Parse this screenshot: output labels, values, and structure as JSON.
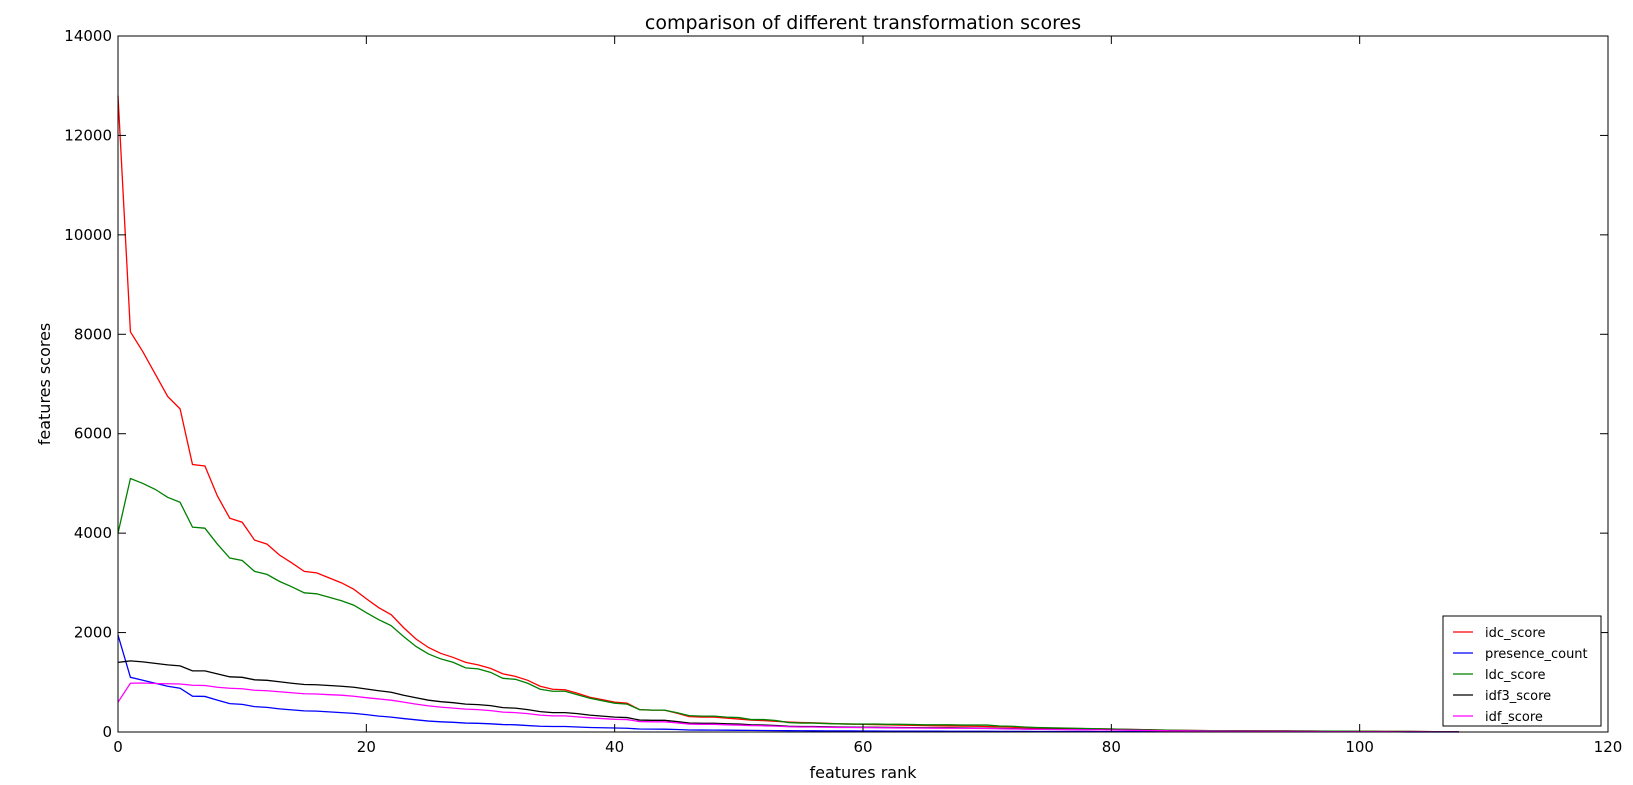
{
  "chart_data": {
    "type": "line",
    "title": "comparison of different transformation scores",
    "xlabel": "features rank",
    "ylabel": "features scores",
    "xlim": [
      0,
      120
    ],
    "ylim": [
      0,
      14000
    ],
    "xticks": [
      0,
      20,
      40,
      60,
      80,
      100,
      120
    ],
    "yticks": [
      0,
      2000,
      4000,
      6000,
      8000,
      10000,
      12000,
      14000
    ],
    "grid": false,
    "legend_position": "bottom-right",
    "x": [
      0,
      1,
      2,
      3,
      4,
      5,
      6,
      7,
      8,
      9,
      10,
      11,
      12,
      13,
      14,
      15,
      16,
      17,
      18,
      19,
      20,
      21,
      22,
      23,
      24,
      25,
      26,
      27,
      28,
      29,
      30,
      31,
      32,
      33,
      34,
      35,
      36,
      37,
      38,
      39,
      40,
      41,
      42,
      43,
      44,
      45,
      46,
      47,
      48,
      49,
      50,
      51,
      52,
      53,
      54,
      55,
      56,
      57,
      58,
      59,
      60,
      61,
      62,
      63,
      64,
      65,
      66,
      67,
      68,
      69,
      70,
      71,
      72,
      73,
      74,
      75,
      76,
      77,
      78,
      79,
      80,
      81,
      82,
      83,
      84,
      85,
      86,
      87,
      88,
      89,
      90,
      91,
      92,
      93,
      94,
      95,
      96,
      97,
      98,
      99,
      100,
      101,
      102,
      103,
      104,
      105,
      106,
      107,
      108
    ],
    "series": [
      {
        "name": "idc_score",
        "color": "#ff0000",
        "values": [
          12800,
          8050,
          7650,
          7200,
          6750,
          6500,
          5380,
          5350,
          4750,
          4300,
          4220,
          3860,
          3780,
          3560,
          3400,
          3230,
          3200,
          3100,
          3000,
          2870,
          2680,
          2500,
          2360,
          2100,
          1870,
          1700,
          1580,
          1500,
          1400,
          1350,
          1280,
          1170,
          1120,
          1040,
          920,
          860,
          850,
          780,
          700,
          650,
          600,
          580,
          450,
          440,
          440,
          380,
          310,
          300,
          300,
          280,
          260,
          240,
          230,
          215,
          200,
          190,
          185,
          175,
          165,
          160,
          155,
          150,
          145,
          140,
          135,
          130,
          125,
          120,
          118,
          115,
          110,
          105,
          95,
          85,
          80,
          75,
          72,
          70,
          68,
          65,
          60,
          55,
          50,
          45,
          40,
          35,
          32,
          30,
          28,
          26,
          25,
          24,
          23,
          22,
          21,
          20,
          19,
          18,
          17,
          16,
          15,
          14,
          13,
          12,
          11,
          10,
          8,
          6,
          5
        ]
      },
      {
        "name": "presence_count",
        "color": "#0000ff",
        "values": [
          1950,
          1100,
          1040,
          980,
          920,
          880,
          720,
          715,
          640,
          570,
          555,
          510,
          495,
          465,
          445,
          425,
          420,
          405,
          390,
          375,
          350,
          320,
          300,
          270,
          245,
          220,
          205,
          195,
          180,
          175,
          165,
          150,
          145,
          130,
          115,
          110,
          110,
          100,
          90,
          85,
          80,
          75,
          60,
          58,
          57,
          50,
          40,
          39,
          38,
          36,
          34,
          32,
          30,
          28,
          26,
          25,
          24,
          23,
          22,
          21,
          20,
          19,
          18,
          18,
          17,
          16,
          16,
          15,
          15,
          14,
          14,
          13,
          12,
          11,
          10,
          10,
          9,
          9,
          9,
          8,
          8,
          7,
          7,
          6,
          6,
          5,
          5,
          4,
          4,
          4,
          3,
          3,
          3,
          3,
          3,
          3,
          2,
          2,
          2,
          2,
          2,
          2,
          2,
          2,
          1,
          1,
          1,
          1,
          1
        ]
      },
      {
        "name": "ldc_score",
        "color": "#008000",
        "values": [
          4000,
          5100,
          5000,
          4880,
          4720,
          4620,
          4120,
          4100,
          3780,
          3500,
          3450,
          3230,
          3170,
          3030,
          2920,
          2800,
          2780,
          2710,
          2640,
          2550,
          2400,
          2260,
          2140,
          1920,
          1720,
          1570,
          1470,
          1400,
          1290,
          1270,
          1200,
          1080,
          1060,
          980,
          860,
          820,
          820,
          750,
          680,
          630,
          580,
          560,
          450,
          440,
          440,
          390,
          330,
          320,
          320,
          300,
          290,
          250,
          250,
          230,
          190,
          180,
          180,
          170,
          165,
          160,
          160,
          160,
          155,
          155,
          150,
          145,
          145,
          145,
          140,
          140,
          140,
          120,
          115,
          100,
          90,
          85,
          80,
          75,
          70,
          65,
          60,
          55,
          50,
          45,
          40,
          35,
          32,
          30,
          28,
          26,
          25,
          24,
          23,
          22,
          21,
          20,
          19,
          18,
          17,
          16,
          15,
          14,
          13,
          12,
          11,
          10,
          8,
          6,
          5
        ]
      },
      {
        "name": "idf3_score",
        "color": "#000000",
        "values": [
          1400,
          1430,
          1410,
          1380,
          1350,
          1330,
          1230,
          1230,
          1170,
          1110,
          1100,
          1050,
          1040,
          1010,
          980,
          955,
          950,
          935,
          920,
          900,
          865,
          830,
          800,
          740,
          690,
          640,
          610,
          590,
          560,
          550,
          530,
          490,
          480,
          450,
          410,
          390,
          390,
          370,
          340,
          320,
          300,
          290,
          240,
          235,
          235,
          210,
          180,
          175,
          175,
          165,
          160,
          145,
          140,
          130,
          115,
          110,
          110,
          105,
          100,
          98,
          96,
          95,
          92,
          90,
          88,
          86,
          85,
          84,
          82,
          80,
          78,
          72,
          68,
          62,
          58,
          55,
          52,
          50,
          48,
          46,
          44,
          40,
          36,
          32,
          28,
          25,
          22,
          20,
          18,
          17,
          16,
          15,
          14,
          13,
          12,
          11,
          10,
          9,
          8,
          8,
          7,
          6,
          6,
          5,
          5,
          4,
          3,
          3,
          2
        ]
      },
      {
        "name": "idf_score",
        "color": "#ff00ff",
        "values": [
          600,
          980,
          985,
          975,
          970,
          965,
          940,
          935,
          900,
          880,
          870,
          840,
          830,
          810,
          790,
          770,
          765,
          750,
          740,
          720,
          690,
          665,
          640,
          600,
          560,
          525,
          500,
          480,
          460,
          450,
          430,
          400,
          390,
          370,
          340,
          325,
          325,
          305,
          285,
          270,
          255,
          250,
          210,
          205,
          205,
          185,
          160,
          155,
          155,
          145,
          140,
          130,
          125,
          118,
          105,
          100,
          100,
          95,
          92,
          90,
          88,
          86,
          84,
          82,
          80,
          78,
          77,
          76,
          75,
          74,
          72,
          66,
          62,
          57,
          53,
          50,
          48,
          46,
          44,
          42,
          40,
          37,
          34,
          30,
          26,
          23,
          21,
          19,
          17,
          16,
          15,
          14,
          13,
          12,
          11,
          10,
          9,
          8,
          8,
          7,
          7,
          6,
          6,
          5,
          5,
          4,
          3,
          3,
          2
        ]
      }
    ]
  }
}
